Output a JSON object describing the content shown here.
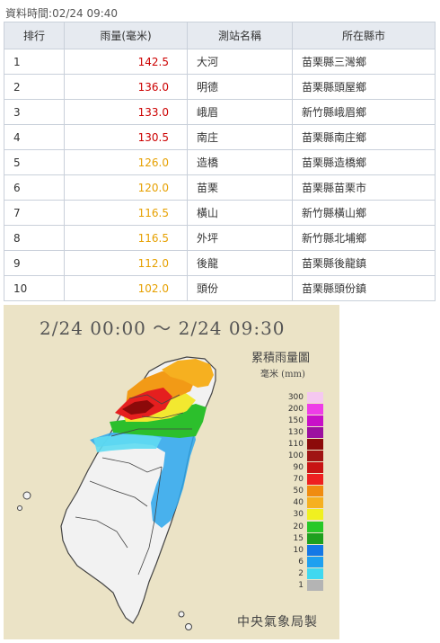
{
  "header": {
    "time_label": "資料時間",
    "time_value": "02/24 09:40"
  },
  "table": {
    "columns": [
      "排行",
      "雨量(毫米)",
      "測站名稱",
      "所在縣市"
    ],
    "rows": [
      {
        "rank": "1",
        "amount": "142.5",
        "station": "大河",
        "county": "苗栗縣三灣鄉",
        "color": "#cc0000"
      },
      {
        "rank": "2",
        "amount": "136.0",
        "station": "明德",
        "county": "苗栗縣頭屋鄉",
        "color": "#cc0000"
      },
      {
        "rank": "3",
        "amount": "133.0",
        "station": "峨眉",
        "county": "新竹縣峨眉鄉",
        "color": "#cc0000"
      },
      {
        "rank": "4",
        "amount": "130.5",
        "station": "南庄",
        "county": "苗栗縣南庄鄉",
        "color": "#cc0000"
      },
      {
        "rank": "5",
        "amount": "126.0",
        "station": "造橋",
        "county": "苗栗縣造橋鄉",
        "color": "#e6a000"
      },
      {
        "rank": "6",
        "amount": "120.0",
        "station": "苗栗",
        "county": "苗栗縣苗栗市",
        "color": "#e6a000"
      },
      {
        "rank": "7",
        "amount": "116.5",
        "station": "橫山",
        "county": "新竹縣橫山鄉",
        "color": "#e6a000"
      },
      {
        "rank": "8",
        "amount": "116.5",
        "station": "外坪",
        "county": "新竹縣北埔鄉",
        "color": "#e6a000"
      },
      {
        "rank": "9",
        "amount": "112.0",
        "station": "後龍",
        "county": "苗栗縣後龍鎮",
        "color": "#e6a000"
      },
      {
        "rank": "10",
        "amount": "102.0",
        "station": "頭份",
        "county": "苗栗縣頭份鎮",
        "color": "#e6a000"
      }
    ]
  },
  "map": {
    "title": "2/24 00:00 ～ 2/24 09:30",
    "legend_title": "累積雨量圖",
    "legend_unit": "毫米 (mm)",
    "legend": [
      {
        "label": "300",
        "color": "#f5c8f0"
      },
      {
        "label": "200",
        "color": "#ee3de8"
      },
      {
        "label": "150",
        "color": "#c810c8"
      },
      {
        "label": "130",
        "color": "#9c10a0"
      },
      {
        "label": "110",
        "color": "#8c0a0a"
      },
      {
        "label": "100",
        "color": "#a01414"
      },
      {
        "label": "90",
        "color": "#c81414"
      },
      {
        "label": "70",
        "color": "#ee2020"
      },
      {
        "label": "50",
        "color": "#f08c10"
      },
      {
        "label": "40",
        "color": "#f6b020"
      },
      {
        "label": "30",
        "color": "#f0f020"
      },
      {
        "label": "20",
        "color": "#28c828"
      },
      {
        "label": "15",
        "color": "#1ea01e"
      },
      {
        "label": "10",
        "color": "#1478e6"
      },
      {
        "label": "6",
        "color": "#1ea0f0"
      },
      {
        "label": "2",
        "color": "#40d8f0"
      },
      {
        "label": "1",
        "color": "#b4b4b4"
      }
    ],
    "credit": "中央氣象局製"
  }
}
